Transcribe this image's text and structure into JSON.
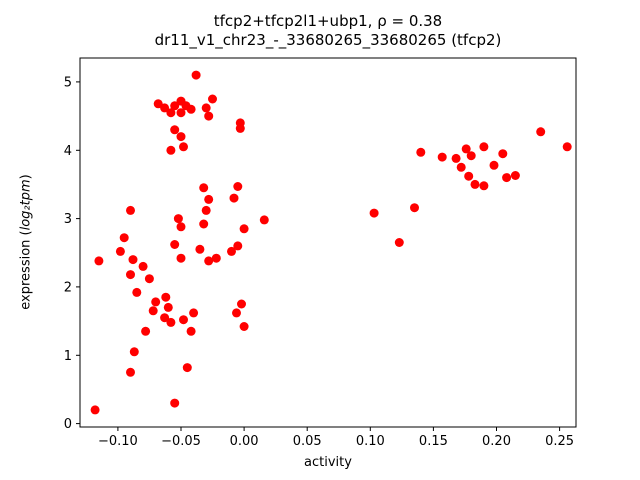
{
  "chart_data": {
    "type": "scatter",
    "title_line1": "tfcp2+tfcp2l1+ubp1, ρ = 0.38",
    "title_line2": "dr11_v1_chr23_-_33680265_33680265 (tfcp2)",
    "xlabel": "activity",
    "ylabel_prefix": "expression (",
    "ylabel_math": "log₂tpm",
    "ylabel_suffix": ")",
    "xlim": [
      -0.13,
      0.263
    ],
    "ylim": [
      -0.05,
      5.35
    ],
    "grid": false,
    "legend": null,
    "marker": {
      "shape": "circle",
      "color": "#ff0000",
      "radius_px": 4.5
    },
    "xticks": {
      "values": [
        -0.1,
        -0.05,
        0.0,
        0.05,
        0.1,
        0.15,
        0.2,
        0.25
      ],
      "labels": [
        "−0.10",
        "−0.05",
        "0.00",
        "0.05",
        "0.10",
        "0.15",
        "0.20",
        "0.25"
      ]
    },
    "yticks": {
      "values": [
        0,
        1,
        2,
        3,
        4,
        5
      ],
      "labels": [
        "0",
        "1",
        "2",
        "3",
        "4",
        "5"
      ]
    },
    "points": [
      [
        -0.118,
        0.2
      ],
      [
        -0.115,
        2.38
      ],
      [
        -0.098,
        2.52
      ],
      [
        -0.095,
        2.72
      ],
      [
        -0.09,
        3.12
      ],
      [
        -0.09,
        2.18
      ],
      [
        -0.09,
        0.75
      ],
      [
        -0.088,
        2.4
      ],
      [
        -0.087,
        1.05
      ],
      [
        -0.085,
        1.92
      ],
      [
        -0.08,
        2.3
      ],
      [
        -0.078,
        1.35
      ],
      [
        -0.075,
        2.12
      ],
      [
        -0.072,
        1.65
      ],
      [
        -0.07,
        1.78
      ],
      [
        -0.068,
        4.68
      ],
      [
        -0.063,
        4.62
      ],
      [
        -0.058,
        4.55
      ],
      [
        -0.055,
        4.65
      ],
      [
        -0.05,
        4.72
      ],
      [
        -0.046,
        4.65
      ],
      [
        -0.05,
        4.55
      ],
      [
        -0.042,
        4.6
      ],
      [
        -0.055,
        4.3
      ],
      [
        -0.05,
        4.2
      ],
      [
        -0.058,
        4.0
      ],
      [
        -0.048,
        4.05
      ],
      [
        -0.038,
        5.1
      ],
      [
        -0.03,
        4.62
      ],
      [
        -0.028,
        4.5
      ],
      [
        -0.025,
        4.75
      ],
      [
        -0.003,
        4.4
      ],
      [
        -0.003,
        4.32
      ],
      [
        -0.062,
        1.85
      ],
      [
        -0.06,
        1.7
      ],
      [
        -0.063,
        1.55
      ],
      [
        -0.058,
        1.48
      ],
      [
        -0.055,
        0.3
      ],
      [
        -0.052,
        3.0
      ],
      [
        -0.05,
        2.88
      ],
      [
        -0.055,
        2.62
      ],
      [
        -0.05,
        2.42
      ],
      [
        -0.048,
        1.52
      ],
      [
        -0.042,
        1.35
      ],
      [
        -0.045,
        0.82
      ],
      [
        -0.04,
        1.62
      ],
      [
        -0.032,
        3.45
      ],
      [
        -0.028,
        3.28
      ],
      [
        -0.03,
        3.12
      ],
      [
        -0.032,
        2.92
      ],
      [
        -0.035,
        2.55
      ],
      [
        -0.028,
        2.38
      ],
      [
        -0.022,
        2.42
      ],
      [
        -0.005,
        3.47
      ],
      [
        -0.008,
        3.3
      ],
      [
        0.0,
        2.85
      ],
      [
        -0.005,
        2.6
      ],
      [
        -0.01,
        2.52
      ],
      [
        -0.002,
        1.75
      ],
      [
        -0.006,
        1.62
      ],
      [
        0.0,
        1.42
      ],
      [
        0.016,
        2.98
      ],
      [
        0.103,
        3.08
      ],
      [
        0.123,
        2.65
      ],
      [
        0.135,
        3.16
      ],
      [
        0.14,
        3.97
      ],
      [
        0.157,
        3.9
      ],
      [
        0.168,
        3.88
      ],
      [
        0.172,
        3.75
      ],
      [
        0.176,
        4.02
      ],
      [
        0.18,
        3.92
      ],
      [
        0.178,
        3.62
      ],
      [
        0.183,
        3.5
      ],
      [
        0.19,
        3.48
      ],
      [
        0.19,
        4.05
      ],
      [
        0.198,
        3.78
      ],
      [
        0.205,
        3.95
      ],
      [
        0.208,
        3.6
      ],
      [
        0.215,
        3.63
      ],
      [
        0.235,
        4.27
      ],
      [
        0.256,
        4.05
      ]
    ]
  }
}
